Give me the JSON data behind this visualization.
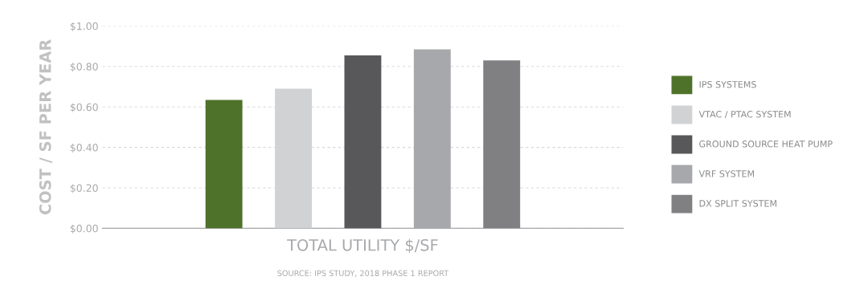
{
  "chart_data": {
    "type": "bar",
    "ylabel": "COST / SF PER YEAR",
    "xlabel": "TOTAL UTILITY $/SF",
    "categories": [
      null
    ],
    "series": [
      {
        "name": "IPS SYSTEMS",
        "color": "#4e7229",
        "values": [
          0.635
        ]
      },
      {
        "name": "VTAC / PTAC SYSTEM",
        "color": "#d1d2d4",
        "values": [
          0.69
        ]
      },
      {
        "name": "GROUND SOURCE HEAT PUMP",
        "color": "#58585a",
        "values": [
          0.855
        ]
      },
      {
        "name": "VRF SYSTEM",
        "color": "#a7a8ab",
        "values": [
          0.885
        ]
      },
      {
        "name": "DX SPLIT SYSTEM",
        "color": "#808083",
        "values": [
          0.83
        ]
      }
    ],
    "ylim": [
      0,
      1.0
    ],
    "yticks": [
      {
        "value": 0,
        "label": "$0.00"
      },
      {
        "value": 0.2,
        "label": "$0.20"
      },
      {
        "value": 0.4,
        "label": "$0.40"
      },
      {
        "value": 0.6,
        "label": "$0.60"
      },
      {
        "value": 0.8,
        "label": "$0.80"
      },
      {
        "value": 1.0,
        "label": "$1.00"
      }
    ],
    "grid": "y",
    "legend": "right",
    "annotations": [
      "SOURCE: IPS STUDY, 2018 PHASE 1 REPORT"
    ]
  }
}
